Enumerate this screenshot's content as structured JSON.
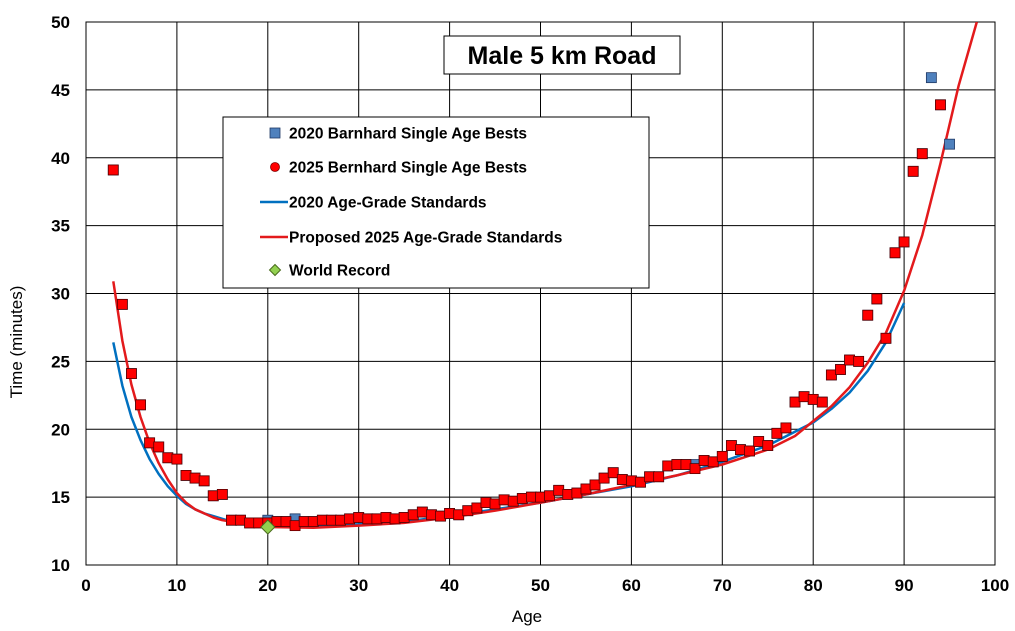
{
  "chart_data": {
    "type": "scatter",
    "title": "Male 5 km Road",
    "xlabel": "Age",
    "ylabel": "Time (minutes)",
    "xlim": [
      0,
      100
    ],
    "ylim": [
      10,
      50
    ],
    "xticks": [
      0,
      10,
      20,
      30,
      40,
      50,
      60,
      70,
      80,
      90,
      100
    ],
    "yticks": [
      10,
      15,
      20,
      25,
      30,
      35,
      40,
      45,
      50
    ],
    "grid": true,
    "legend_position": "upper-left-center",
    "series": [
      {
        "name": "2020 Barnhard Single Age Bests",
        "kind": "square",
        "color": "#4f81bd",
        "points": [
          [
            3,
            39.1
          ],
          [
            4,
            29.2
          ],
          [
            5,
            24.1
          ],
          [
            6,
            21.8
          ],
          [
            7,
            19.0
          ],
          [
            8,
            18.7
          ],
          [
            9,
            17.9
          ],
          [
            10,
            17.8
          ],
          [
            11,
            16.6
          ],
          [
            12,
            16.4
          ],
          [
            13,
            16.2
          ],
          [
            14,
            15.1
          ],
          [
            15,
            15.2
          ],
          [
            16,
            13.3
          ],
          [
            17,
            13.3
          ],
          [
            18,
            13.1
          ],
          [
            19,
            13.1
          ],
          [
            20,
            13.3
          ],
          [
            21,
            13.2
          ],
          [
            22,
            13.2
          ],
          [
            23,
            13.4
          ],
          [
            24,
            13.2
          ],
          [
            25,
            13.2
          ],
          [
            26,
            13.3
          ],
          [
            27,
            13.3
          ],
          [
            28,
            13.3
          ],
          [
            29,
            13.4
          ],
          [
            30,
            13.5
          ],
          [
            31,
            13.4
          ],
          [
            32,
            13.4
          ],
          [
            33,
            13.5
          ],
          [
            34,
            13.4
          ],
          [
            35,
            13.5
          ],
          [
            36,
            13.7
          ],
          [
            37,
            13.9
          ],
          [
            38,
            13.7
          ],
          [
            39,
            13.6
          ],
          [
            40,
            13.8
          ],
          [
            41,
            13.7
          ],
          [
            42,
            14.0
          ],
          [
            43,
            14.2
          ],
          [
            44,
            14.6
          ],
          [
            45,
            14.5
          ],
          [
            46,
            14.8
          ],
          [
            47,
            14.7
          ],
          [
            48,
            14.9
          ],
          [
            49,
            15.0
          ],
          [
            50,
            15.0
          ],
          [
            51,
            15.1
          ],
          [
            52,
            15.5
          ],
          [
            53,
            15.2
          ],
          [
            54,
            15.3
          ],
          [
            55,
            15.6
          ],
          [
            56,
            15.9
          ],
          [
            57,
            16.4
          ],
          [
            58,
            16.8
          ],
          [
            59,
            16.3
          ],
          [
            60,
            16.2
          ],
          [
            61,
            16.1
          ],
          [
            62,
            16.5
          ],
          [
            63,
            16.5
          ],
          [
            64,
            17.3
          ],
          [
            65,
            17.4
          ],
          [
            66,
            17.4
          ],
          [
            67,
            17.4
          ],
          [
            68,
            17.7
          ],
          [
            69,
            17.6
          ],
          [
            70,
            18.0
          ],
          [
            71,
            18.8
          ],
          [
            72,
            18.5
          ],
          [
            73,
            18.4
          ],
          [
            74,
            19.1
          ],
          [
            75,
            18.8
          ],
          [
            76,
            19.7
          ],
          [
            77,
            20.1
          ],
          [
            78,
            22.0
          ],
          [
            79,
            22.4
          ],
          [
            80,
            22.2
          ],
          [
            81,
            22.0
          ],
          [
            82,
            24.0
          ],
          [
            83,
            24.4
          ],
          [
            84,
            25.1
          ],
          [
            85,
            25.0
          ],
          [
            86,
            28.4
          ],
          [
            87,
            29.6
          ],
          [
            88,
            26.7
          ],
          [
            89,
            33.0
          ],
          [
            90,
            33.8
          ],
          [
            91,
            39.0
          ],
          [
            92,
            40.3
          ],
          [
            93,
            45.9
          ],
          [
            94,
            43.9
          ],
          [
            95,
            41.0
          ]
        ]
      },
      {
        "name": "2025 Bernhard Single Age Bests",
        "kind": "circle",
        "color": "#ff0000",
        "points": [
          [
            3,
            39.1
          ],
          [
            4,
            29.2
          ],
          [
            5,
            24.1
          ],
          [
            6,
            21.8
          ],
          [
            7,
            19.0
          ],
          [
            8,
            18.7
          ],
          [
            9,
            17.9
          ],
          [
            10,
            17.8
          ],
          [
            11,
            16.6
          ],
          [
            12,
            16.4
          ],
          [
            13,
            16.2
          ],
          [
            14,
            15.1
          ],
          [
            15,
            15.2
          ],
          [
            16,
            13.3
          ],
          [
            17,
            13.3
          ],
          [
            18,
            13.1
          ],
          [
            19,
            13.1
          ],
          [
            20,
            13.1
          ],
          [
            21,
            13.2
          ],
          [
            22,
            13.2
          ],
          [
            23,
            12.9
          ],
          [
            24,
            13.2
          ],
          [
            25,
            13.2
          ],
          [
            26,
            13.3
          ],
          [
            27,
            13.3
          ],
          [
            28,
            13.3
          ],
          [
            29,
            13.4
          ],
          [
            30,
            13.5
          ],
          [
            31,
            13.4
          ],
          [
            32,
            13.4
          ],
          [
            33,
            13.5
          ],
          [
            34,
            13.4
          ],
          [
            35,
            13.5
          ],
          [
            36,
            13.7
          ],
          [
            37,
            13.9
          ],
          [
            38,
            13.7
          ],
          [
            39,
            13.6
          ],
          [
            40,
            13.8
          ],
          [
            41,
            13.7
          ],
          [
            42,
            14.0
          ],
          [
            43,
            14.2
          ],
          [
            44,
            14.6
          ],
          [
            45,
            14.5
          ],
          [
            46,
            14.8
          ],
          [
            47,
            14.7
          ],
          [
            48,
            14.9
          ],
          [
            49,
            15.0
          ],
          [
            50,
            15.0
          ],
          [
            51,
            15.1
          ],
          [
            52,
            15.5
          ],
          [
            53,
            15.2
          ],
          [
            54,
            15.3
          ],
          [
            55,
            15.6
          ],
          [
            56,
            15.9
          ],
          [
            57,
            16.4
          ],
          [
            58,
            16.8
          ],
          [
            59,
            16.3
          ],
          [
            60,
            16.2
          ],
          [
            61,
            16.1
          ],
          [
            62,
            16.5
          ],
          [
            63,
            16.5
          ],
          [
            64,
            17.3
          ],
          [
            65,
            17.4
          ],
          [
            66,
            17.4
          ],
          [
            67,
            17.1
          ],
          [
            68,
            17.7
          ],
          [
            69,
            17.6
          ],
          [
            70,
            18.0
          ],
          [
            71,
            18.8
          ],
          [
            72,
            18.5
          ],
          [
            73,
            18.4
          ],
          [
            74,
            19.1
          ],
          [
            75,
            18.8
          ],
          [
            76,
            19.7
          ],
          [
            77,
            20.1
          ],
          [
            78,
            22.0
          ],
          [
            79,
            22.4
          ],
          [
            80,
            22.2
          ],
          [
            81,
            22.0
          ],
          [
            82,
            24.0
          ],
          [
            83,
            24.4
          ],
          [
            84,
            25.1
          ],
          [
            85,
            25.0
          ],
          [
            86,
            28.4
          ],
          [
            87,
            29.6
          ],
          [
            88,
            26.7
          ],
          [
            89,
            33.0
          ],
          [
            90,
            33.8
          ],
          [
            91,
            39.0
          ],
          [
            92,
            40.3
          ],
          [
            94,
            43.9
          ]
        ]
      },
      {
        "name": "2020 Age-Grade Standards",
        "kind": "line",
        "color": "#0070c0",
        "points": [
          [
            3,
            26.4
          ],
          [
            4,
            23.2
          ],
          [
            5,
            20.9
          ],
          [
            6,
            19.2
          ],
          [
            7,
            17.8
          ],
          [
            8,
            16.7
          ],
          [
            9,
            15.8
          ],
          [
            10,
            15.1
          ],
          [
            11,
            14.5
          ],
          [
            12,
            14.1
          ],
          [
            13,
            13.8
          ],
          [
            14,
            13.6
          ],
          [
            15,
            13.4
          ],
          [
            16,
            13.2
          ],
          [
            17,
            13.1
          ],
          [
            18,
            13.0
          ],
          [
            19,
            12.95
          ],
          [
            20,
            12.9
          ],
          [
            25,
            12.9
          ],
          [
            30,
            13.0
          ],
          [
            35,
            13.2
          ],
          [
            40,
            13.6
          ],
          [
            45,
            14.1
          ],
          [
            50,
            14.6
          ],
          [
            55,
            15.2
          ],
          [
            60,
            15.8
          ],
          [
            65,
            16.6
          ],
          [
            70,
            17.6
          ],
          [
            75,
            18.8
          ],
          [
            80,
            20.5
          ],
          [
            82,
            21.5
          ],
          [
            84,
            22.7
          ],
          [
            86,
            24.3
          ],
          [
            88,
            26.4
          ],
          [
            90,
            29.3
          ]
        ]
      },
      {
        "name": "Proposed 2025 Age-Grade Standards",
        "kind": "line",
        "color": "#e31a1c",
        "points": [
          [
            3,
            30.9
          ],
          [
            4,
            26.5
          ],
          [
            5,
            23.3
          ],
          [
            6,
            20.9
          ],
          [
            7,
            19.0
          ],
          [
            8,
            17.5
          ],
          [
            9,
            16.3
          ],
          [
            10,
            15.3
          ],
          [
            11,
            14.6
          ],
          [
            12,
            14.1
          ],
          [
            13,
            13.8
          ],
          [
            14,
            13.5
          ],
          [
            15,
            13.3
          ],
          [
            16,
            13.2
          ],
          [
            17,
            13.1
          ],
          [
            18,
            13.0
          ],
          [
            19,
            12.9
          ],
          [
            20,
            12.8
          ],
          [
            25,
            12.75
          ],
          [
            30,
            12.9
          ],
          [
            35,
            13.1
          ],
          [
            40,
            13.5
          ],
          [
            45,
            14.0
          ],
          [
            50,
            14.6
          ],
          [
            55,
            15.2
          ],
          [
            60,
            15.9
          ],
          [
            65,
            16.6
          ],
          [
            70,
            17.4
          ],
          [
            75,
            18.5
          ],
          [
            78,
            19.5
          ],
          [
            80,
            20.6
          ],
          [
            82,
            21.7
          ],
          [
            84,
            23.1
          ],
          [
            86,
            24.9
          ],
          [
            88,
            27.1
          ],
          [
            90,
            30.2
          ],
          [
            92,
            34.3
          ],
          [
            94,
            39.6
          ],
          [
            96,
            45.3
          ],
          [
            98,
            50.0
          ]
        ]
      },
      {
        "name": "World Record",
        "kind": "diamond",
        "color": "#92d050",
        "points": [
          [
            20,
            12.8
          ]
        ]
      }
    ]
  }
}
